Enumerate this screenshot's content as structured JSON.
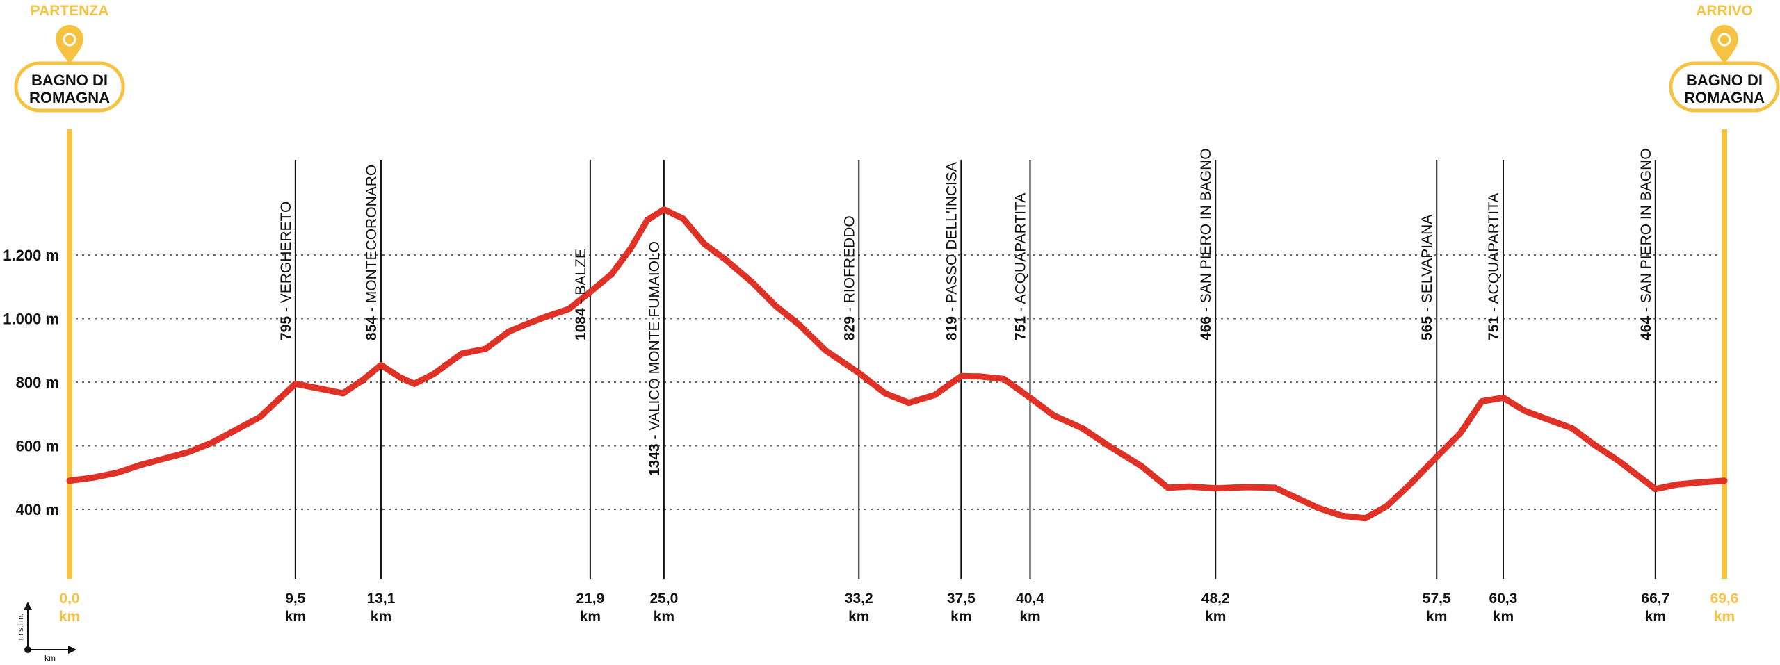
{
  "start_label": "PARTENZA",
  "end_label": "ARRIVO",
  "start_place": [
    "BAGNO DI",
    "ROMAGNA"
  ],
  "end_place": [
    "BAGNO DI",
    "ROMAGNA"
  ],
  "unit_km": "km",
  "axis_y_unit": "m s.l.m.",
  "axis_x_unit": "km",
  "colors": {
    "accent": "#f5c242",
    "profile": "#e03127",
    "grid": "#666666",
    "text": "#111111"
  },
  "chart_data": {
    "type": "line",
    "xlim": [
      0,
      69.6
    ],
    "ylim": [
      200,
      1500
    ],
    "yticks": [
      {
        "value": 400,
        "label": "400 m"
      },
      {
        "value": 600,
        "label": "600 m"
      },
      {
        "value": 800,
        "label": "800 m"
      },
      {
        "value": 1000,
        "label": "1.000 m"
      },
      {
        "value": 1200,
        "label": "1.200 m"
      }
    ],
    "waypoints": [
      {
        "km": 0.0,
        "km_label": "0,0",
        "endpoint": true
      },
      {
        "km": 9.5,
        "km_label": "9,5",
        "alt": "795",
        "name": " - VERGHERETO"
      },
      {
        "km": 13.1,
        "km_label": "13,1",
        "alt": "854",
        "name": " - MONTECORONARO"
      },
      {
        "km": 21.9,
        "km_label": "21,9",
        "alt": "1084",
        "name": " - BALZE"
      },
      {
        "km": 25.0,
        "km_label": "25,0",
        "alt": "1343",
        "name": " - VALICO MONTE FUMAIOLO",
        "below": true
      },
      {
        "km": 33.2,
        "km_label": "33,2",
        "alt": "829",
        "name": " - RIOFREDDO"
      },
      {
        "km": 37.5,
        "km_label": "37,5",
        "alt": "819",
        "name": " - PASSO DELL'INCISA"
      },
      {
        "km": 40.4,
        "km_label": "40,4",
        "alt": "751",
        "name": " - ACQUAPARTITA"
      },
      {
        "km": 48.2,
        "km_label": "48,2",
        "alt": "466",
        "name": " - SAN PIERO IN BAGNO"
      },
      {
        "km": 57.5,
        "km_label": "57,5",
        "alt": "565",
        "name": " - SELVAPIANA"
      },
      {
        "km": 60.3,
        "km_label": "60,3",
        "alt": "751",
        "name": " - ACQUAPARTITA"
      },
      {
        "km": 66.7,
        "km_label": "66,7",
        "alt": "464",
        "name": " - SAN PIERO IN BAGNO"
      },
      {
        "km": 69.6,
        "km_label": "69,6",
        "endpoint": true
      }
    ],
    "profile": [
      [
        0,
        490
      ],
      [
        1,
        500
      ],
      [
        2,
        515
      ],
      [
        3,
        540
      ],
      [
        4,
        560
      ],
      [
        5,
        580
      ],
      [
        6,
        610
      ],
      [
        7,
        650
      ],
      [
        8,
        690
      ],
      [
        9,
        760
      ],
      [
        9.5,
        795
      ],
      [
        10.5,
        780
      ],
      [
        11.5,
        765
      ],
      [
        12.3,
        805
      ],
      [
        13.1,
        854
      ],
      [
        13.9,
        815
      ],
      [
        14.5,
        795
      ],
      [
        15.3,
        825
      ],
      [
        16.5,
        890
      ],
      [
        17.5,
        905
      ],
      [
        18.5,
        960
      ],
      [
        19.3,
        985
      ],
      [
        20,
        1005
      ],
      [
        21,
        1030
      ],
      [
        21.9,
        1084
      ],
      [
        22.8,
        1140
      ],
      [
        23.6,
        1220
      ],
      [
        24.3,
        1310
      ],
      [
        25.0,
        1343
      ],
      [
        25.8,
        1315
      ],
      [
        26.7,
        1235
      ],
      [
        27.6,
        1185
      ],
      [
        28.7,
        1115
      ],
      [
        29.7,
        1040
      ],
      [
        30.7,
        980
      ],
      [
        31.8,
        900
      ],
      [
        33.2,
        829
      ],
      [
        34.3,
        765
      ],
      [
        35.3,
        735
      ],
      [
        36.4,
        760
      ],
      [
        37.5,
        819
      ],
      [
        38.3,
        818
      ],
      [
        39.3,
        810
      ],
      [
        40.4,
        751
      ],
      [
        41.4,
        695
      ],
      [
        42.6,
        655
      ],
      [
        43.6,
        605
      ],
      [
        45.1,
        535
      ],
      [
        46.2,
        468
      ],
      [
        47.1,
        472
      ],
      [
        48.2,
        466
      ],
      [
        49.5,
        470
      ],
      [
        50.7,
        468
      ],
      [
        51.5,
        440
      ],
      [
        52.5,
        405
      ],
      [
        53.5,
        380
      ],
      [
        54.5,
        372
      ],
      [
        55.4,
        410
      ],
      [
        56.4,
        480
      ],
      [
        57.5,
        565
      ],
      [
        58.5,
        640
      ],
      [
        59.4,
        740
      ],
      [
        60.3,
        751
      ],
      [
        61.2,
        710
      ],
      [
        62.1,
        685
      ],
      [
        63.2,
        655
      ],
      [
        64.1,
        605
      ],
      [
        65.2,
        550
      ],
      [
        66.7,
        464
      ],
      [
        67.6,
        478
      ],
      [
        68.6,
        485
      ],
      [
        69.6,
        490
      ]
    ]
  }
}
